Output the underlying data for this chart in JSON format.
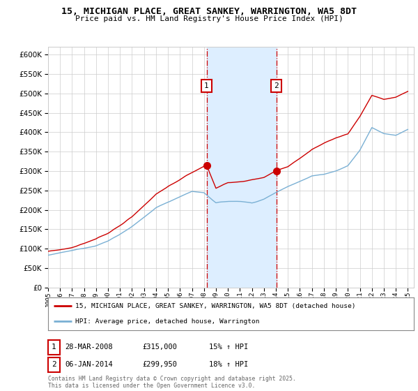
{
  "title": "15, MICHIGAN PLACE, GREAT SANKEY, WARRINGTON, WA5 8DT",
  "subtitle": "Price paid vs. HM Land Registry's House Price Index (HPI)",
  "ylim": [
    0,
    620000
  ],
  "yticks": [
    0,
    50000,
    100000,
    150000,
    200000,
    250000,
    300000,
    350000,
    400000,
    450000,
    500000,
    550000,
    600000
  ],
  "year_start": 1995,
  "year_end": 2025,
  "purchase1_date": 2008.22,
  "purchase1_price": 315000,
  "purchase1_label": "1",
  "purchase2_date": 2014.03,
  "purchase2_price": 299950,
  "purchase2_label": "2",
  "purchase_color": "#cc0000",
  "hpi_color": "#7ab0d4",
  "shade_color": "#ddeeff",
  "vline_color": "#cc0000",
  "legend_label1": "15, MICHIGAN PLACE, GREAT SANKEY, WARRINGTON, WA5 8DT (detached house)",
  "legend_label2": "HPI: Average price, detached house, Warrington",
  "table_row1": [
    "1",
    "28-MAR-2008",
    "£315,000",
    "15% ↑ HPI"
  ],
  "table_row2": [
    "2",
    "06-JAN-2014",
    "£299,950",
    "18% ↑ HPI"
  ],
  "footnote": "Contains HM Land Registry data © Crown copyright and database right 2025.\nThis data is licensed under the Open Government Licence v3.0.",
  "background_color": "#ffffff",
  "grid_color": "#cccccc",
  "hpi_base_points_x": [
    1995,
    1996,
    1997,
    1998,
    1999,
    2000,
    2001,
    2002,
    2003,
    2004,
    2005,
    2006,
    2007,
    2008,
    2009,
    2010,
    2011,
    2012,
    2013,
    2014,
    2015,
    2016,
    2017,
    2018,
    2019,
    2020,
    2021,
    2022,
    2023,
    2024,
    2025
  ],
  "hpi_base_points_y": [
    83000,
    88000,
    93000,
    100000,
    108000,
    120000,
    138000,
    158000,
    180000,
    205000,
    220000,
    235000,
    248000,
    245000,
    218000,
    222000,
    222000,
    218000,
    228000,
    245000,
    262000,
    275000,
    290000,
    295000,
    305000,
    318000,
    358000,
    415000,
    400000,
    395000,
    410000
  ],
  "price_base_points_x": [
    1995,
    1996,
    1997,
    1998,
    1999,
    2000,
    2001,
    2002,
    2003,
    2004,
    2005,
    2006,
    2007,
    2008.22,
    2009,
    2010,
    2011,
    2012,
    2013,
    2014.03,
    2015,
    2016,
    2017,
    2018,
    2019,
    2020,
    2021,
    2022,
    2023,
    2024,
    2025
  ],
  "price_base_points_y": [
    93000,
    98000,
    103000,
    112000,
    122000,
    138000,
    158000,
    180000,
    210000,
    240000,
    260000,
    278000,
    295000,
    315000,
    255000,
    270000,
    272000,
    275000,
    282000,
    299950,
    310000,
    332000,
    355000,
    370000,
    385000,
    395000,
    440000,
    495000,
    485000,
    490000,
    505000
  ]
}
